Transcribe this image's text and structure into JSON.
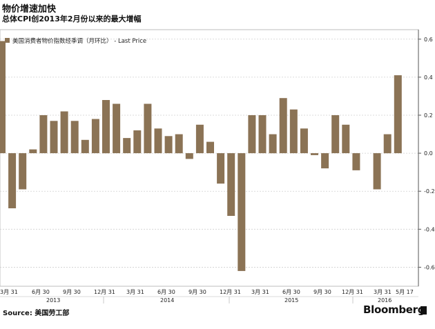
{
  "header": {
    "title": "物价增速加快",
    "subtitle": "总体CPI创2013年2月份以来的最大增幅"
  },
  "footer": {
    "source": "Source: 美国劳工部",
    "brand": "Bloomberg"
  },
  "chart_data": {
    "type": "bar",
    "ylim": [
      -0.7,
      0.65
    ],
    "yticks": [
      0.6,
      0.4,
      0.2,
      0.0,
      -0.2,
      -0.4,
      -0.6
    ],
    "ytick_labels": [
      "0.6",
      "0.4",
      "0.2",
      "0.0",
      "-0.2",
      "-0.4",
      "-0.6"
    ],
    "bar_color": "#8b7355",
    "legend": {
      "label": "美国消费者物价指数经季调（月环比）  - Last Price",
      "position": "top-left"
    },
    "grid": true,
    "categories": [
      "2013-02",
      "2013-03",
      "2013-04",
      "2013-05",
      "2013-06",
      "2013-07",
      "2013-08",
      "2013-09",
      "2013-10",
      "2013-11",
      "2013-12",
      "2014-01",
      "2014-02",
      "2014-03",
      "2014-04",
      "2014-05",
      "2014-06",
      "2014-07",
      "2014-08",
      "2014-09",
      "2014-10",
      "2014-11",
      "2014-12",
      "2015-01",
      "2015-02",
      "2015-03",
      "2015-04",
      "2015-05",
      "2015-06",
      "2015-07",
      "2015-08",
      "2015-09",
      "2015-10",
      "2015-11",
      "2015-12",
      "2016-01",
      "2016-02",
      "2016-03",
      "2016-04"
    ],
    "values": [
      0.59,
      -0.29,
      -0.19,
      0.02,
      0.2,
      0.17,
      0.22,
      0.17,
      0.07,
      0.18,
      0.28,
      0.26,
      0.08,
      0.12,
      0.26,
      0.13,
      0.09,
      0.1,
      -0.03,
      0.15,
      0.06,
      -0.16,
      -0.33,
      -0.62,
      0.2,
      0.2,
      0.1,
      0.29,
      0.23,
      0.13,
      -0.01,
      -0.08,
      0.2,
      0.15,
      -0.09,
      0.0,
      -0.19,
      0.1,
      0.41
    ],
    "x_tick_labels": [
      "3月 31",
      "6月 30",
      "9月 30",
      "12月 31",
      "3月 31",
      "6月 30",
      "9月 30",
      "12月 31",
      "3月 31",
      "6月 30",
      "9月 30",
      "12月 31",
      "3月 31",
      "5月 17"
    ],
    "year_labels": [
      "2013",
      "2014",
      "2015",
      "2016"
    ]
  }
}
